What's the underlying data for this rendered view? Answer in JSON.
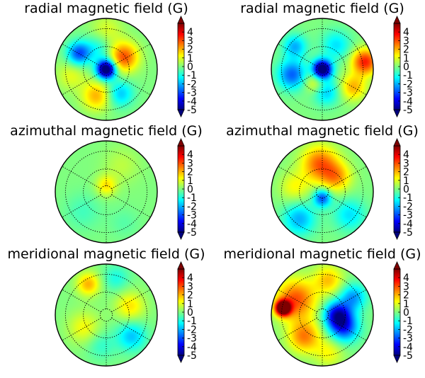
{
  "colors": {
    "colormap": [
      "#00007f",
      "#0000ff",
      "#007fff",
      "#00ffff",
      "#7fff7f",
      "#ffff00",
      "#ff7f00",
      "#ff0000",
      "#7f0000"
    ],
    "grid": "#000000",
    "outline": "#000000"
  },
  "colorbar": {
    "ticks": [
      4,
      3,
      2,
      1,
      0,
      -1,
      -2,
      -3,
      -4,
      -5
    ],
    "tick_labels": [
      "4",
      "3",
      "2",
      "1",
      "0",
      "-1",
      "-2",
      "-3",
      "-4",
      "-5"
    ],
    "range": [
      -5,
      5
    ],
    "extend": "both"
  },
  "chart_data": [
    {
      "type": "heatmap",
      "projection": "polar",
      "row": 0,
      "col": 0,
      "title": "radial magnetic field (G)",
      "features": [
        {
          "r": 0.0,
          "theta": 0,
          "value": -6.0,
          "spread": 0.13
        },
        {
          "r": 0.42,
          "theta": 35,
          "value": 3.0,
          "spread": 0.2
        },
        {
          "r": 0.62,
          "theta": 150,
          "value": -3.0,
          "spread": 0.16
        },
        {
          "r": 0.55,
          "theta": 250,
          "value": 2.0,
          "spread": 0.2
        },
        {
          "r": 0.55,
          "theta": 300,
          "value": -1.8,
          "spread": 0.18
        },
        {
          "r": 0.75,
          "theta": 90,
          "value": 1.0,
          "spread": 0.22
        },
        {
          "r": 0.7,
          "theta": 190,
          "value": 1.0,
          "spread": 0.2
        },
        {
          "r": 0.45,
          "theta": 110,
          "value": -1.2,
          "spread": 0.2
        }
      ]
    },
    {
      "type": "heatmap",
      "projection": "polar",
      "row": 0,
      "col": 1,
      "title": "radial magnetic field (G)",
      "features": [
        {
          "r": 0.0,
          "theta": 0,
          "value": -6.0,
          "spread": 0.13
        },
        {
          "r": 0.85,
          "theta": 10,
          "value": 3.5,
          "spread": 0.18
        },
        {
          "r": 0.7,
          "theta": 330,
          "value": 2.0,
          "spread": 0.18
        },
        {
          "r": 0.6,
          "theta": 190,
          "value": -2.8,
          "spread": 0.2
        },
        {
          "r": 0.7,
          "theta": 140,
          "value": -2.0,
          "spread": 0.16
        },
        {
          "r": 0.45,
          "theta": 280,
          "value": -1.8,
          "spread": 0.18
        },
        {
          "r": 0.55,
          "theta": 60,
          "value": -1.5,
          "spread": 0.2
        },
        {
          "r": 0.3,
          "theta": 240,
          "value": 1.5,
          "spread": 0.15
        }
      ]
    },
    {
      "type": "heatmap",
      "projection": "polar",
      "row": 1,
      "col": 0,
      "title": "azimuthal magnetic field (G)",
      "features": [
        {
          "r": 0.12,
          "theta": 90,
          "value": 1.5,
          "spread": 0.14
        },
        {
          "r": 0.6,
          "theta": 60,
          "value": 0.6,
          "spread": 0.25
        },
        {
          "r": 0.6,
          "theta": 220,
          "value": -0.6,
          "spread": 0.25
        },
        {
          "r": 0.7,
          "theta": 300,
          "value": -0.4,
          "spread": 0.2
        }
      ]
    },
    {
      "type": "heatmap",
      "projection": "polar",
      "row": 1,
      "col": 1,
      "title": "azimuthal magnetic field (G)",
      "features": [
        {
          "r": 0.55,
          "theta": 95,
          "value": 2.8,
          "spread": 0.25
        },
        {
          "r": 0.4,
          "theta": 45,
          "value": 2.0,
          "spread": 0.2
        },
        {
          "r": 0.12,
          "theta": 270,
          "value": -3.0,
          "spread": 0.12
        },
        {
          "r": 0.7,
          "theta": 230,
          "value": -2.0,
          "spread": 0.22
        },
        {
          "r": 0.7,
          "theta": 320,
          "value": -1.5,
          "spread": 0.22
        },
        {
          "r": 0.55,
          "theta": 170,
          "value": 1.2,
          "spread": 0.2
        }
      ]
    },
    {
      "type": "heatmap",
      "projection": "polar",
      "row": 2,
      "col": 0,
      "title": "meridional magnetic field (G)",
      "features": [
        {
          "r": 0.7,
          "theta": 120,
          "value": 2.0,
          "spread": 0.16
        },
        {
          "r": 0.5,
          "theta": 20,
          "value": 1.5,
          "spread": 0.2
        },
        {
          "r": 0.65,
          "theta": 320,
          "value": -1.8,
          "spread": 0.2
        },
        {
          "r": 0.75,
          "theta": 75,
          "value": -1.0,
          "spread": 0.18
        },
        {
          "r": 0.5,
          "theta": 210,
          "value": 1.2,
          "spread": 0.22
        },
        {
          "r": 0.6,
          "theta": 260,
          "value": -0.8,
          "spread": 0.2
        }
      ]
    },
    {
      "type": "heatmap",
      "projection": "polar",
      "row": 2,
      "col": 1,
      "title": "meridional magnetic field (G)",
      "features": [
        {
          "r": 0.78,
          "theta": 170,
          "value": 7.0,
          "spread": 0.1
        },
        {
          "r": 0.6,
          "theta": 150,
          "value": 3.0,
          "spread": 0.28
        },
        {
          "r": 0.3,
          "theta": 0,
          "value": -4.0,
          "spread": 0.18
        },
        {
          "r": 0.5,
          "theta": 330,
          "value": -3.0,
          "spread": 0.2
        },
        {
          "r": 0.7,
          "theta": 30,
          "value": -2.2,
          "spread": 0.18
        },
        {
          "r": 0.55,
          "theta": 230,
          "value": 2.5,
          "spread": 0.22
        },
        {
          "r": 0.7,
          "theta": 80,
          "value": 1.8,
          "spread": 0.2
        },
        {
          "r": 0.75,
          "theta": 280,
          "value": 1.2,
          "spread": 0.2
        }
      ]
    }
  ]
}
